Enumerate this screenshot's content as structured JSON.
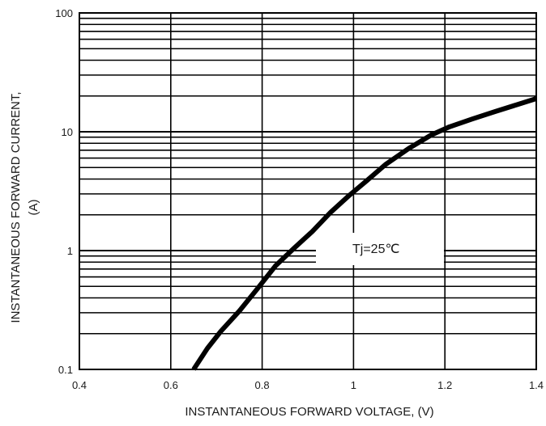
{
  "chart_data": {
    "type": "line",
    "xlabel": "INSTANTANEOUS FORWARD VOLTAGE, (V)",
    "ylabel_line1": "INSTANTANEOUS FORWARD CURRENT,",
    "ylabel_line2": "(A)",
    "x_scale": "linear",
    "y_scale": "log",
    "xlim": [
      0.4,
      1.4
    ],
    "ylim": [
      0.1,
      100
    ],
    "x_ticks": [
      "0.4",
      "0.6",
      "0.8",
      "1",
      "1.2",
      "1.4"
    ],
    "y_ticks": [
      "0.1",
      "1",
      "10",
      "100"
    ],
    "grid": true,
    "annotation": "Tj=25℃",
    "series": [
      {
        "x": [
          0.65,
          0.68,
          0.71,
          0.75,
          0.79,
          0.83,
          0.87,
          0.91,
          0.95,
          0.99,
          1.03,
          1.07,
          1.12,
          1.17,
          1.21,
          1.26,
          1.31,
          1.36,
          1.4
        ],
        "y": [
          0.1,
          0.15,
          0.21,
          0.31,
          0.48,
          0.75,
          1.05,
          1.45,
          2.1,
          2.9,
          3.9,
          5.3,
          7.2,
          9.4,
          11,
          12.8,
          14.8,
          17,
          19
        ]
      }
    ],
    "colors": {
      "line": "#000000",
      "grid": "#000000"
    }
  }
}
